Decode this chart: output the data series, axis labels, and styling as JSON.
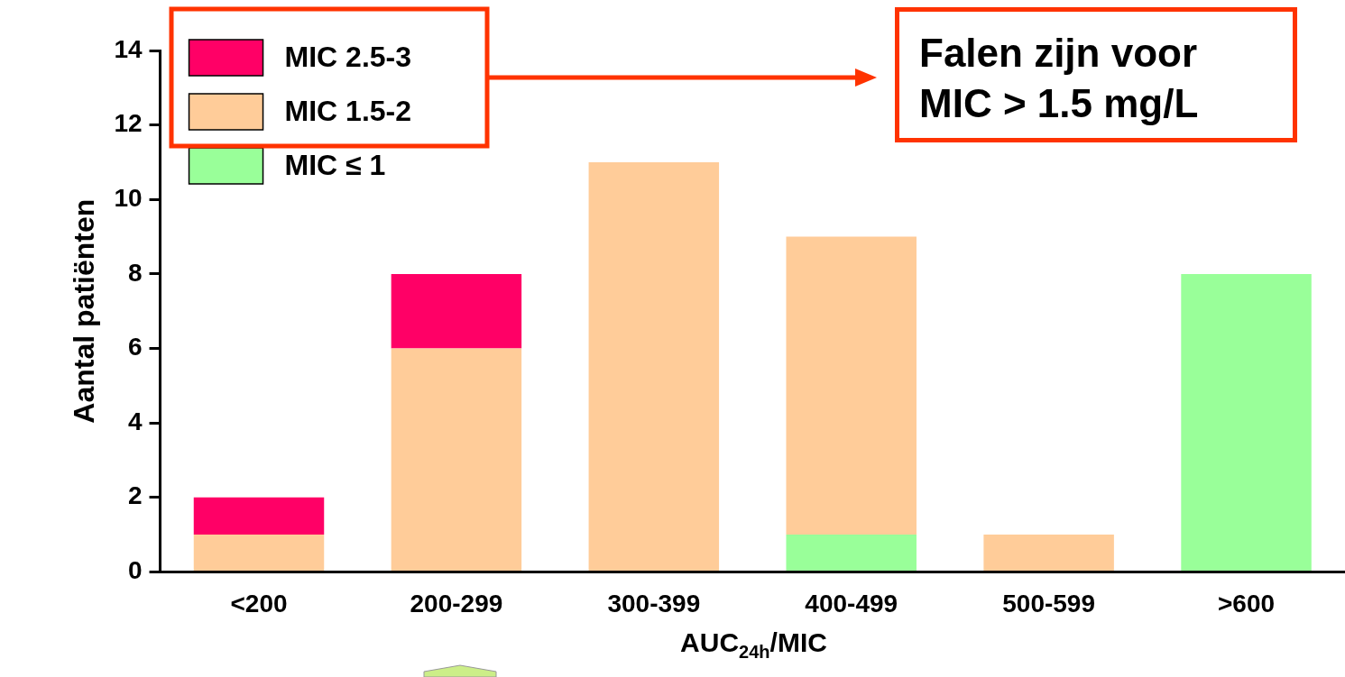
{
  "chart_data": {
    "type": "bar",
    "stacked": true,
    "xlabel": "AUC$_{24h}$/MIC",
    "ylabel": "Aantal patiënten",
    "categories": [
      "<200",
      "200-299",
      "300-399",
      "400-499",
      "500-599",
      ">600"
    ],
    "series": [
      {
        "name": "MIC ≤ 1",
        "color": "#99ff99",
        "values": [
          0,
          0,
          0,
          1,
          0,
          8
        ]
      },
      {
        "name": "MIC 1.5-2",
        "color": "#ffcc99",
        "values": [
          1,
          6,
          11,
          8,
          1,
          0
        ]
      },
      {
        "name": "MIC 2.5-3",
        "color": "#ff0066",
        "values": [
          1,
          2,
          0,
          0,
          0,
          0
        ]
      }
    ],
    "ylim": [
      0,
      14
    ],
    "yticks": [
      0,
      2,
      4,
      6,
      8,
      10,
      12,
      14
    ],
    "grid": false,
    "legend": "top left",
    "annotations": [
      "Falen zijn voor MIC > 1.5 mg/L"
    ]
  }
}
